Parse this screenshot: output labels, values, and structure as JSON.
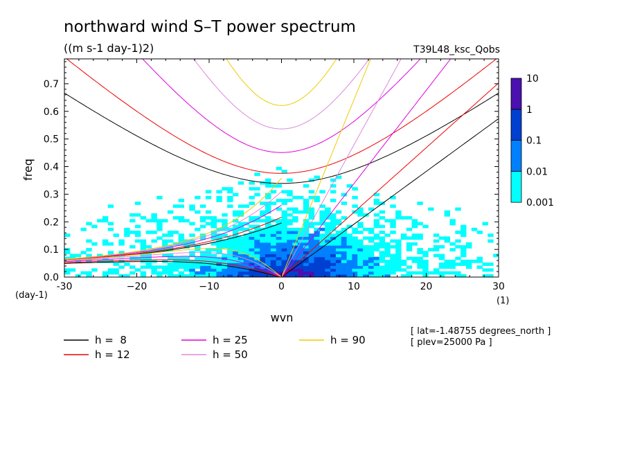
{
  "chart_data": {
    "type": "heatmap",
    "title": "northward wind S–T power spectrum",
    "units": "((m s-1 day-1)2)",
    "experiment": "T39L48_ksc_Qobs",
    "xlabel": "wvn",
    "xunit": "(1)",
    "ylabel": "freq",
    "yunit": "(day-1)",
    "xlim": [
      -30,
      30
    ],
    "ylim": [
      0,
      0.79
    ],
    "xticks": [
      -30,
      -20,
      -10,
      0,
      10,
      20,
      30
    ],
    "xticklabels": [
      "-30",
      "−20",
      "−10",
      "0",
      "10",
      "20",
      "30"
    ],
    "yticks": [
      0,
      0.1,
      0.2,
      0.3,
      0.4,
      0.5,
      0.6,
      0.7
    ],
    "yticklabels": [
      "0.0",
      "0.1",
      "0.2",
      "0.3",
      "0.4",
      "0.5",
      "0.6",
      "0.7"
    ],
    "colorbar": {
      "levels": [
        "0.001",
        "0.01",
        "0.1",
        "1",
        "10"
      ],
      "colors": [
        "#00ffff",
        "#0080ff",
        "#0040d0",
        "#4b10b0"
      ]
    },
    "dispersion_curves": [
      {
        "label": "h =  8",
        "h": 8,
        "color": "#000000"
      },
      {
        "label": "h = 12",
        "h": 12,
        "color": "#ee0000"
      },
      {
        "label": "h = 25",
        "h": 25,
        "color": "#dd00dd"
      },
      {
        "label": "h = 50",
        "h": 50,
        "color": "#dd88dd"
      },
      {
        "label": "h = 90",
        "h": 90,
        "color": "#eecc00"
      }
    ],
    "annotations": [
      "[ lat=-1.48755 degrees_north ]",
      "[ plev=25000 Pa ]"
    ]
  }
}
